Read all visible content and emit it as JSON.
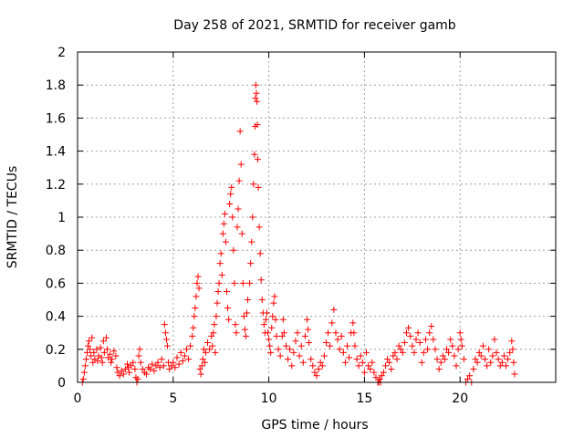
{
  "chart_data": {
    "type": "scatter",
    "title": "Day 258 of 2021, SRMTID for receiver gamb",
    "xlabel": "GPS time / hours",
    "ylabel": "SRMTID / TECUs",
    "xlim": [
      0,
      25
    ],
    "ylim": [
      0,
      2
    ],
    "x_ticks": [
      0,
      5,
      10,
      15,
      20
    ],
    "x_tick_labels": [
      "0",
      "5",
      "10",
      "15",
      "20"
    ],
    "y_ticks": [
      0,
      0.2,
      0.4,
      0.6,
      0.8,
      1,
      1.2,
      1.4,
      1.6,
      1.8,
      2
    ],
    "y_tick_labels": [
      "0",
      "0.2",
      "0.4",
      "0.6",
      "0.8",
      "1",
      "1.2",
      "1.4",
      "1.6",
      "1.8",
      "2"
    ],
    "grid": true,
    "marker": "+",
    "color": "#ff0000",
    "series": [
      {
        "name": "SRMTID",
        "points": [
          [
            0.25,
            0.0
          ],
          [
            0.3,
            0.02
          ],
          [
            0.35,
            0.06
          ],
          [
            0.4,
            0.1
          ],
          [
            0.45,
            0.14
          ],
          [
            0.5,
            0.18
          ],
          [
            0.55,
            0.22
          ],
          [
            0.6,
            0.25
          ],
          [
            0.65,
            0.2
          ],
          [
            0.7,
            0.16
          ],
          [
            0.75,
            0.27
          ],
          [
            0.8,
            0.12
          ],
          [
            0.85,
            0.18
          ],
          [
            0.9,
            0.14
          ],
          [
            1.0,
            0.2
          ],
          [
            1.05,
            0.13
          ],
          [
            1.1,
            0.16
          ],
          [
            1.2,
            0.21
          ],
          [
            1.25,
            0.15
          ],
          [
            1.3,
            0.12
          ],
          [
            1.35,
            0.25
          ],
          [
            1.4,
            0.18
          ],
          [
            1.5,
            0.27
          ],
          [
            1.55,
            0.2
          ],
          [
            1.6,
            0.15
          ],
          [
            1.7,
            0.17
          ],
          [
            1.75,
            0.12
          ],
          [
            1.8,
            0.14
          ],
          [
            1.9,
            0.19
          ],
          [
            2.0,
            0.16
          ],
          [
            2.05,
            0.09
          ],
          [
            2.1,
            0.06
          ],
          [
            2.2,
            0.04
          ],
          [
            2.3,
            0.07
          ],
          [
            2.4,
            0.05
          ],
          [
            2.5,
            0.08
          ],
          [
            2.6,
            0.11
          ],
          [
            2.65,
            0.09
          ],
          [
            2.7,
            0.06
          ],
          [
            2.8,
            0.1
          ],
          [
            2.9,
            0.12
          ],
          [
            3.0,
            0.08
          ],
          [
            3.05,
            0.03
          ],
          [
            3.1,
            0.0
          ],
          [
            3.15,
            0.02
          ],
          [
            3.2,
            0.16
          ],
          [
            3.25,
            0.2
          ],
          [
            3.3,
            0.12
          ],
          [
            3.4,
            0.08
          ],
          [
            3.5,
            0.06
          ],
          [
            3.6,
            0.05
          ],
          [
            3.7,
            0.09
          ],
          [
            3.8,
            0.08
          ],
          [
            3.9,
            0.11
          ],
          [
            4.0,
            0.07
          ],
          [
            4.1,
            0.1
          ],
          [
            4.2,
            0.12
          ],
          [
            4.3,
            0.09
          ],
          [
            4.4,
            0.14
          ],
          [
            4.5,
            0.1
          ],
          [
            4.55,
            0.35
          ],
          [
            4.6,
            0.3
          ],
          [
            4.65,
            0.26
          ],
          [
            4.7,
            0.22
          ],
          [
            4.75,
            0.12
          ],
          [
            4.8,
            0.08
          ],
          [
            4.9,
            0.1
          ],
          [
            5.0,
            0.12
          ],
          [
            5.1,
            0.09
          ],
          [
            5.2,
            0.15
          ],
          [
            5.3,
            0.11
          ],
          [
            5.4,
            0.18
          ],
          [
            5.5,
            0.13
          ],
          [
            5.6,
            0.16
          ],
          [
            5.7,
            0.2
          ],
          [
            5.8,
            0.14
          ],
          [
            5.9,
            0.22
          ],
          [
            6.0,
            0.28
          ],
          [
            6.05,
            0.33
          ],
          [
            6.1,
            0.4
          ],
          [
            6.15,
            0.45
          ],
          [
            6.2,
            0.52
          ],
          [
            6.25,
            0.6
          ],
          [
            6.3,
            0.64
          ],
          [
            6.35,
            0.57
          ],
          [
            6.4,
            0.08
          ],
          [
            6.45,
            0.05
          ],
          [
            6.5,
            0.1
          ],
          [
            6.55,
            0.14
          ],
          [
            6.6,
            0.2
          ],
          [
            6.65,
            0.12
          ],
          [
            6.7,
            0.18
          ],
          [
            6.8,
            0.24
          ],
          [
            6.9,
            0.2
          ],
          [
            7.0,
            0.28
          ],
          [
            7.05,
            0.22
          ],
          [
            7.1,
            0.3
          ],
          [
            7.15,
            0.35
          ],
          [
            7.2,
            0.18
          ],
          [
            7.25,
            0.4
          ],
          [
            7.3,
            0.48
          ],
          [
            7.35,
            0.55
          ],
          [
            7.4,
            0.6
          ],
          [
            7.45,
            0.72
          ],
          [
            7.5,
            0.78
          ],
          [
            7.55,
            0.65
          ],
          [
            7.6,
            0.9
          ],
          [
            7.65,
            0.96
          ],
          [
            7.7,
            1.02
          ],
          [
            7.75,
            0.85
          ],
          [
            7.8,
            0.55
          ],
          [
            7.85,
            0.45
          ],
          [
            7.9,
            0.38
          ],
          [
            7.95,
            1.08
          ],
          [
            8.0,
            1.14
          ],
          [
            8.05,
            1.18
          ],
          [
            8.1,
            1.0
          ],
          [
            8.15,
            0.8
          ],
          [
            8.2,
            0.6
          ],
          [
            8.25,
            0.35
          ],
          [
            8.3,
            0.3
          ],
          [
            8.35,
            0.94
          ],
          [
            8.4,
            1.05
          ],
          [
            8.45,
            1.22
          ],
          [
            8.5,
            1.52
          ],
          [
            8.55,
            1.32
          ],
          [
            8.6,
            0.9
          ],
          [
            8.65,
            0.6
          ],
          [
            8.7,
            0.4
          ],
          [
            8.75,
            0.32
          ],
          [
            8.8,
            0.28
          ],
          [
            8.85,
            0.42
          ],
          [
            8.9,
            0.5
          ],
          [
            9.0,
            0.6
          ],
          [
            9.05,
            0.72
          ],
          [
            9.1,
            0.85
          ],
          [
            9.15,
            1.0
          ],
          [
            9.2,
            1.2
          ],
          [
            9.25,
            1.38
          ],
          [
            9.28,
            1.55
          ],
          [
            9.3,
            1.72
          ],
          [
            9.32,
            1.8
          ],
          [
            9.35,
            1.75
          ],
          [
            9.38,
            1.7
          ],
          [
            9.4,
            1.56
          ],
          [
            9.42,
            1.35
          ],
          [
            9.45,
            1.18
          ],
          [
            9.5,
            0.94
          ],
          [
            9.55,
            0.78
          ],
          [
            9.6,
            0.62
          ],
          [
            9.65,
            0.5
          ],
          [
            9.7,
            0.42
          ],
          [
            9.75,
            0.35
          ],
          [
            9.8,
            0.3
          ],
          [
            9.85,
            0.38
          ],
          [
            9.9,
            0.42
          ],
          [
            9.95,
            0.3
          ],
          [
            10.0,
            0.26
          ],
          [
            10.05,
            0.22
          ],
          [
            10.1,
            0.18
          ],
          [
            10.15,
            0.33
          ],
          [
            10.2,
            0.4
          ],
          [
            10.25,
            0.48
          ],
          [
            10.3,
            0.52
          ],
          [
            10.35,
            0.38
          ],
          [
            10.4,
            0.28
          ],
          [
            10.5,
            0.2
          ],
          [
            10.6,
            0.16
          ],
          [
            10.7,
            0.28
          ],
          [
            10.75,
            0.38
          ],
          [
            10.8,
            0.3
          ],
          [
            10.9,
            0.22
          ],
          [
            11.0,
            0.14
          ],
          [
            11.1,
            0.2
          ],
          [
            11.2,
            0.1
          ],
          [
            11.3,
            0.18
          ],
          [
            11.4,
            0.25
          ],
          [
            11.5,
            0.3
          ],
          [
            11.6,
            0.16
          ],
          [
            11.7,
            0.22
          ],
          [
            11.8,
            0.12
          ],
          [
            11.9,
            0.28
          ],
          [
            12.0,
            0.38
          ],
          [
            12.05,
            0.32
          ],
          [
            12.1,
            0.24
          ],
          [
            12.2,
            0.14
          ],
          [
            12.3,
            0.1
          ],
          [
            12.4,
            0.06
          ],
          [
            12.5,
            0.04
          ],
          [
            12.6,
            0.08
          ],
          [
            12.7,
            0.12
          ],
          [
            12.8,
            0.1
          ],
          [
            12.9,
            0.16
          ],
          [
            13.0,
            0.24
          ],
          [
            13.1,
            0.3
          ],
          [
            13.2,
            0.22
          ],
          [
            13.3,
            0.36
          ],
          [
            13.4,
            0.44
          ],
          [
            13.5,
            0.3
          ],
          [
            13.6,
            0.26
          ],
          [
            13.7,
            0.2
          ],
          [
            13.8,
            0.28
          ],
          [
            13.9,
            0.18
          ],
          [
            14.0,
            0.12
          ],
          [
            14.1,
            0.22
          ],
          [
            14.2,
            0.15
          ],
          [
            14.3,
            0.3
          ],
          [
            14.4,
            0.36
          ],
          [
            14.45,
            0.3
          ],
          [
            14.5,
            0.22
          ],
          [
            14.6,
            0.14
          ],
          [
            14.7,
            0.1
          ],
          [
            14.8,
            0.16
          ],
          [
            14.9,
            0.12
          ],
          [
            15.0,
            0.06
          ],
          [
            15.1,
            0.18
          ],
          [
            15.2,
            0.1
          ],
          [
            15.3,
            0.08
          ],
          [
            15.4,
            0.12
          ],
          [
            15.5,
            0.06
          ],
          [
            15.6,
            0.03
          ],
          [
            15.7,
            0.0
          ],
          [
            15.75,
            0.0
          ],
          [
            15.8,
            0.02
          ],
          [
            15.85,
            0.0
          ],
          [
            15.9,
            0.04
          ],
          [
            16.0,
            0.06
          ],
          [
            16.1,
            0.1
          ],
          [
            16.2,
            0.14
          ],
          [
            16.3,
            0.12
          ],
          [
            16.4,
            0.08
          ],
          [
            16.5,
            0.16
          ],
          [
            16.6,
            0.18
          ],
          [
            16.7,
            0.14
          ],
          [
            16.8,
            0.22
          ],
          [
            16.9,
            0.2
          ],
          [
            17.0,
            0.18
          ],
          [
            17.1,
            0.24
          ],
          [
            17.2,
            0.3
          ],
          [
            17.3,
            0.33
          ],
          [
            17.4,
            0.28
          ],
          [
            17.5,
            0.22
          ],
          [
            17.6,
            0.18
          ],
          [
            17.7,
            0.26
          ],
          [
            17.8,
            0.3
          ],
          [
            17.9,
            0.24
          ],
          [
            18.0,
            0.12
          ],
          [
            18.1,
            0.18
          ],
          [
            18.2,
            0.26
          ],
          [
            18.3,
            0.2
          ],
          [
            18.4,
            0.3
          ],
          [
            18.5,
            0.34
          ],
          [
            18.6,
            0.26
          ],
          [
            18.7,
            0.2
          ],
          [
            18.8,
            0.14
          ],
          [
            18.9,
            0.08
          ],
          [
            19.0,
            0.12
          ],
          [
            19.1,
            0.16
          ],
          [
            19.2,
            0.14
          ],
          [
            19.3,
            0.2
          ],
          [
            19.4,
            0.18
          ],
          [
            19.5,
            0.26
          ],
          [
            19.6,
            0.22
          ],
          [
            19.7,
            0.16
          ],
          [
            19.8,
            0.1
          ],
          [
            19.9,
            0.2
          ],
          [
            20.0,
            0.3
          ],
          [
            20.05,
            0.26
          ],
          [
            20.1,
            0.22
          ],
          [
            20.2,
            0.14
          ],
          [
            20.3,
            0.0
          ],
          [
            20.4,
            0.02
          ],
          [
            20.5,
            0.04
          ],
          [
            20.6,
            0.0
          ],
          [
            20.7,
            0.08
          ],
          [
            20.8,
            0.14
          ],
          [
            20.9,
            0.12
          ],
          [
            21.0,
            0.18
          ],
          [
            21.1,
            0.16
          ],
          [
            21.2,
            0.22
          ],
          [
            21.3,
            0.14
          ],
          [
            21.4,
            0.1
          ],
          [
            21.5,
            0.2
          ],
          [
            21.6,
            0.12
          ],
          [
            21.7,
            0.16
          ],
          [
            21.8,
            0.26
          ],
          [
            21.9,
            0.18
          ],
          [
            22.0,
            0.14
          ],
          [
            22.1,
            0.1
          ],
          [
            22.2,
            0.12
          ],
          [
            22.3,
            0.16
          ],
          [
            22.4,
            0.1
          ],
          [
            22.5,
            0.14
          ],
          [
            22.6,
            0.18
          ],
          [
            22.7,
            0.25
          ],
          [
            22.75,
            0.2
          ],
          [
            22.8,
            0.12
          ],
          [
            22.85,
            0.05
          ]
        ]
      }
    ]
  }
}
